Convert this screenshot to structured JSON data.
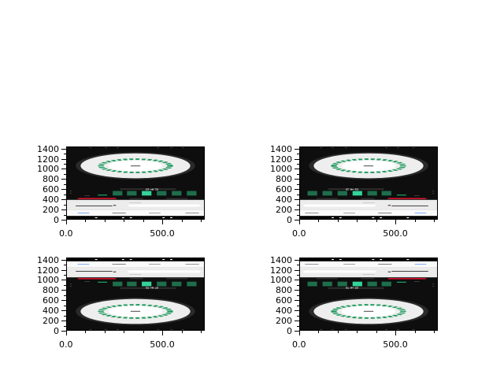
{
  "chart_data": [
    {
      "type": "heatmap",
      "panel": "top-left",
      "image_flip": {
        "horizontal": false,
        "vertical": true
      },
      "xlim": [
        0,
        720
      ],
      "ylim": [
        0,
        1440
      ],
      "x_ticks": [
        0,
        500
      ],
      "x_tick_labels": [
        "0.0",
        "500.0"
      ],
      "y_ticks": [
        0,
        200,
        400,
        600,
        800,
        1000,
        1200,
        1400
      ],
      "y_tick_labels": [
        "0",
        "200",
        "400",
        "600",
        "800",
        "1000",
        "1200",
        "1400"
      ],
      "screen_text": "542"
    },
    {
      "type": "heatmap",
      "panel": "top-right",
      "image_flip": {
        "horizontal": true,
        "vertical": true
      },
      "xlim": [
        0,
        720
      ],
      "ylim": [
        0,
        1440
      ],
      "x_ticks": [
        0,
        500
      ],
      "x_tick_labels": [
        "0.0",
        "500.0"
      ],
      "y_ticks": [
        0,
        200,
        400,
        600,
        800,
        1000,
        1200,
        1400
      ],
      "y_tick_labels": [
        "0",
        "200",
        "400",
        "600",
        "800",
        "1000",
        "1200",
        "1400"
      ],
      "screen_text": "542"
    },
    {
      "type": "heatmap",
      "panel": "bottom-left",
      "image_flip": {
        "horizontal": false,
        "vertical": false
      },
      "xlim": [
        0,
        720
      ],
      "ylim": [
        0,
        1440
      ],
      "x_ticks": [
        0,
        500
      ],
      "x_tick_labels": [
        "0.0",
        "500.0"
      ],
      "y_ticks": [
        0,
        200,
        400,
        600,
        800,
        1000,
        1200,
        1400
      ],
      "y_tick_labels": [
        "0",
        "200",
        "400",
        "600",
        "800",
        "1000",
        "1200",
        "1400"
      ],
      "screen_text": "542"
    },
    {
      "type": "heatmap",
      "panel": "bottom-right",
      "image_flip": {
        "horizontal": true,
        "vertical": false
      },
      "xlim": [
        0,
        720
      ],
      "ylim": [
        0,
        1440
      ],
      "x_ticks": [
        0,
        500
      ],
      "x_tick_labels": [
        "0.0",
        "500.0"
      ],
      "y_ticks": [
        0,
        200,
        400,
        600,
        800,
        1000,
        1200,
        1400
      ],
      "y_tick_labels": [
        "0",
        "200",
        "400",
        "600",
        "800",
        "1000",
        "1200",
        "1400"
      ],
      "screen_text": "542"
    }
  ],
  "colors": {
    "background": "#0e0e0e",
    "green": "#1f9a5e",
    "bright_green": "#33d39a",
    "red": "#e5132e",
    "light": "#eeeeee"
  }
}
